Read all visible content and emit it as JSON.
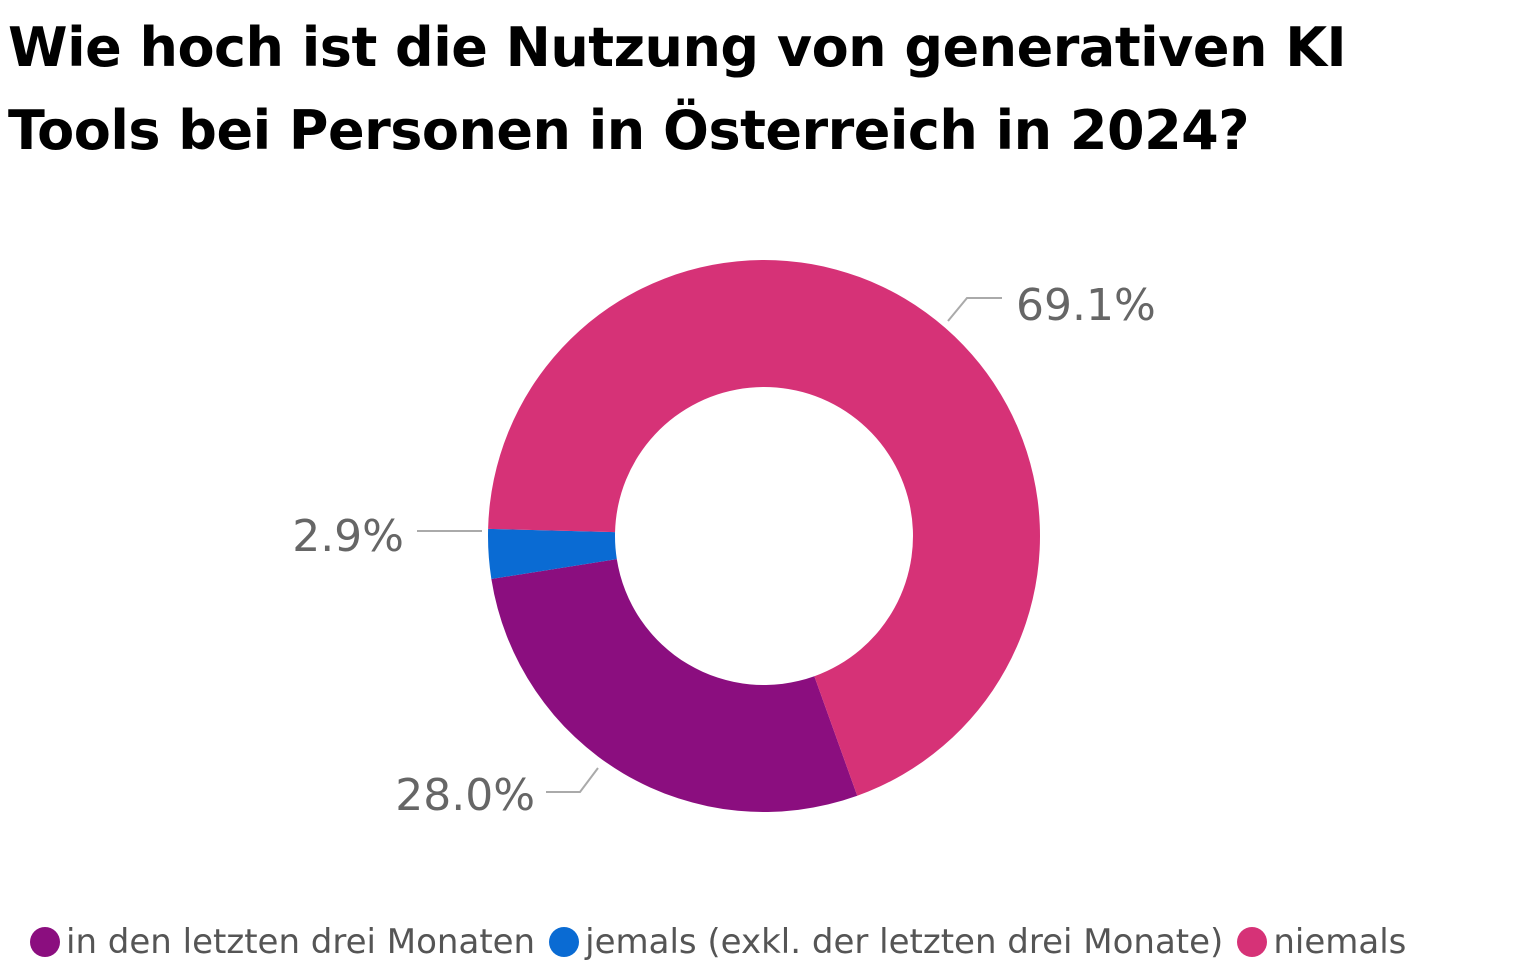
{
  "chart_data": {
    "type": "pie",
    "variant": "donut",
    "title": "Wie hoch ist die Nutzung von generativen KI Tools bei Personen in Österreich in 2024?",
    "unit": "%",
    "slices": [
      {
        "label": "in den letzten drei Monaten",
        "value": 28.0,
        "display": "28.0%",
        "color": "#8B0E7F"
      },
      {
        "label": "jemals (exkl. der letzten drei Monate)",
        "value": 2.9,
        "display": "2.9%",
        "color": "#0A6BD3"
      },
      {
        "label": "niemals",
        "value": 69.1,
        "display": "69.1%",
        "color": "#D63277"
      }
    ],
    "legend_position": "bottom-left",
    "label_color": "#666666",
    "leader_color": "#AAAAAA"
  }
}
